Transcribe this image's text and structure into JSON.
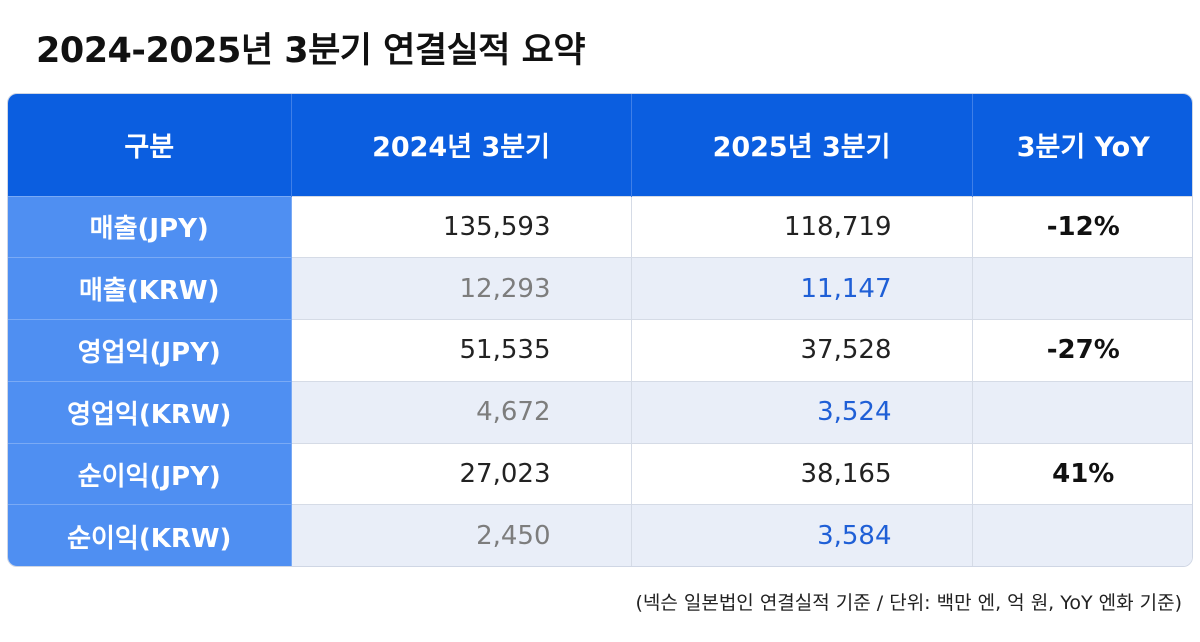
{
  "title": "2024-2025년 3분기 연결실적 요약",
  "table": {
    "headers": [
      "구분",
      "2024년 3분기",
      "2025년 3분기",
      "3분기 YoY"
    ],
    "rows": [
      {
        "label": "매출(JPY)",
        "q3_2024": "135,593",
        "q3_2025": "118,719",
        "yoy": "-12%"
      },
      {
        "label": "매출(KRW)",
        "q3_2024": "12,293",
        "q3_2025": "11,147",
        "yoy": ""
      },
      {
        "label": "영업익(JPY)",
        "q3_2024": "51,535",
        "q3_2025": "37,528",
        "yoy": "-27%"
      },
      {
        "label": "영업익(KRW)",
        "q3_2024": "4,672",
        "q3_2025": "3,524",
        "yoy": ""
      },
      {
        "label": "순이익(JPY)",
        "q3_2024": "27,023",
        "q3_2025": "38,165",
        "yoy": "41%"
      },
      {
        "label": "순이익(KRW)",
        "q3_2024": "2,450",
        "q3_2025": "3,584",
        "yoy": ""
      }
    ]
  },
  "footnote": "(넥슨 일본법인 연결실적 기준 / 단위: 백만 엔, 억 원, YoY 엔화 기준)",
  "colors": {
    "header_bg": "#0b5ee0",
    "label_bg": "#4f8ff2",
    "krw_row_bg": "#e9eef8",
    "krw_2025_text": "#1f5fd6",
    "krw_2024_text": "#7d7d7d"
  }
}
